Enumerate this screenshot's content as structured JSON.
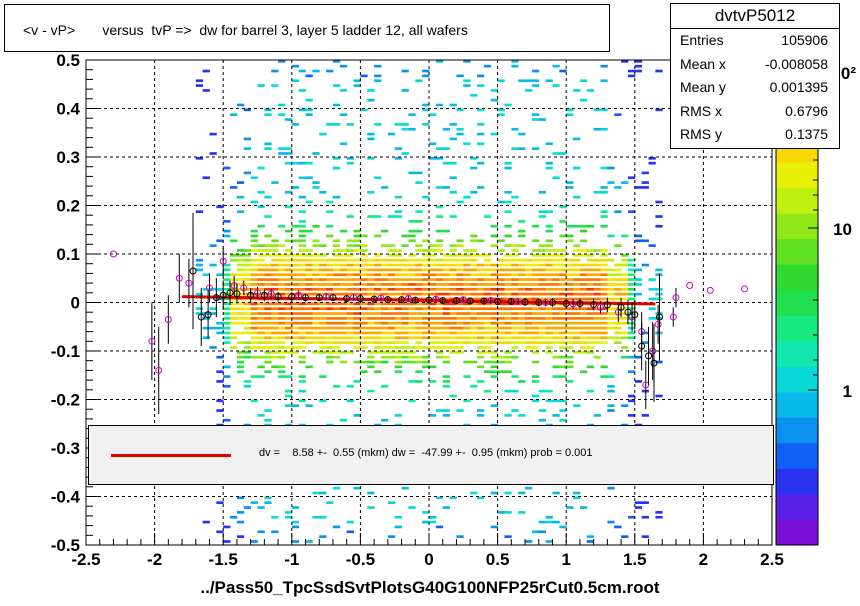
{
  "title": "<v - vP>       versus  tvP =>  dw for barrel 3, layer 5 ladder 12, all wafers",
  "stats": {
    "name": "dvtvP5012",
    "rows": [
      {
        "key": "Entries",
        "value": "105906"
      },
      {
        "key": "Mean x",
        "value": "-0.008058"
      },
      {
        "key": "Mean y",
        "value": "0.001395"
      },
      {
        "key": "RMS x",
        "value": "0.6796"
      },
      {
        "key": "RMS y",
        "value": "0.1375"
      }
    ]
  },
  "legend": {
    "text": "dv =    8.58 +-  0.55 (mkm) dw =  -47.99 +-  0.95 (mkm) prob = 0.001",
    "line_color": "#e00000"
  },
  "xaxis_title": "../Pass50_TpcSsdSvtPlotsG40G100NFP25rCut0.5cm.root",
  "chart_data": {
    "type": "heatmap",
    "title": "<v - vP>       versus  tvP =>  dw for barrel 3, layer 5 ladder 12, all wafers",
    "xlabel": "../Pass50_TpcSsdSvtPlotsG40G100NFP25rCut0.5cm.root",
    "ylabel": "",
    "xlim": [
      -2.5,
      2.5
    ],
    "ylim": [
      -0.5,
      0.5
    ],
    "x_ticks": [
      "-2.5",
      "-2",
      "-1.5",
      "-1",
      "-0.5",
      "0",
      "0.5",
      "1",
      "1.5",
      "2",
      "2.5"
    ],
    "y_ticks": [
      "0.5",
      "0.4",
      "0.3",
      "0.2",
      "0.1",
      "0",
      "-0.1",
      "-0.2",
      "-0.3",
      "-0.4",
      "-0.5"
    ],
    "grid": true,
    "z_scale": "log",
    "z_ticks": [
      "1",
      "10"
    ],
    "z_exponent_fragment": "0²",
    "palette": [
      "#7a10d8",
      "#5a20e8",
      "#2a32f0",
      "#1060f5",
      "#0a90f0",
      "#08b8e8",
      "#08d8d8",
      "#10e8b0",
      "#18e880",
      "#20e050",
      "#30d830",
      "#60e020",
      "#90e818",
      "#c0f010",
      "#e8f008",
      "#f8d800",
      "#f8a800",
      "#f87800",
      "#f04000"
    ],
    "fit_line": {
      "x": [
        -1.8,
        1.65
      ],
      "y": [
        0.012,
        -0.003
      ],
      "color": "#e00000"
    },
    "profile_black": [
      {
        "x": -1.72,
        "y": 0.065,
        "err": 0.12
      },
      {
        "x": -1.66,
        "y": -0.03,
        "err": 0.06
      },
      {
        "x": -1.61,
        "y": -0.025,
        "err": 0.05
      },
      {
        "x": -1.55,
        "y": 0.01,
        "err": 0.04
      },
      {
        "x": -1.5,
        "y": 0.015,
        "err": 0.03
      },
      {
        "x": -1.45,
        "y": 0.02,
        "err": 0.025
      },
      {
        "x": -1.4,
        "y": 0.018,
        "err": 0.02
      },
      {
        "x": -1.3,
        "y": 0.015,
        "err": 0.015
      },
      {
        "x": -1.2,
        "y": 0.015,
        "err": 0.012
      },
      {
        "x": -1.1,
        "y": 0.012,
        "err": 0.01
      },
      {
        "x": -1.0,
        "y": 0.012,
        "err": 0.01
      },
      {
        "x": -0.9,
        "y": 0.01,
        "err": 0.008
      },
      {
        "x": -0.8,
        "y": 0.01,
        "err": 0.008
      },
      {
        "x": -0.7,
        "y": 0.01,
        "err": 0.007
      },
      {
        "x": -0.6,
        "y": 0.008,
        "err": 0.007
      },
      {
        "x": -0.5,
        "y": 0.008,
        "err": 0.006
      },
      {
        "x": -0.4,
        "y": 0.007,
        "err": 0.006
      },
      {
        "x": -0.3,
        "y": 0.006,
        "err": 0.006
      },
      {
        "x": -0.2,
        "y": 0.006,
        "err": 0.006
      },
      {
        "x": -0.1,
        "y": 0.005,
        "err": 0.006
      },
      {
        "x": 0.0,
        "y": 0.005,
        "err": 0.006
      },
      {
        "x": 0.1,
        "y": 0.004,
        "err": 0.006
      },
      {
        "x": 0.2,
        "y": 0.004,
        "err": 0.006
      },
      {
        "x": 0.3,
        "y": 0.003,
        "err": 0.006
      },
      {
        "x": 0.4,
        "y": 0.003,
        "err": 0.006
      },
      {
        "x": 0.5,
        "y": 0.002,
        "err": 0.007
      },
      {
        "x": 0.6,
        "y": 0.002,
        "err": 0.007
      },
      {
        "x": 0.7,
        "y": 0.001,
        "err": 0.008
      },
      {
        "x": 0.8,
        "y": 0.0,
        "err": 0.008
      },
      {
        "x": 0.9,
        "y": 0.0,
        "err": 0.009
      },
      {
        "x": 1.0,
        "y": -0.002,
        "err": 0.01
      },
      {
        "x": 1.1,
        "y": -0.002,
        "err": 0.01
      },
      {
        "x": 1.2,
        "y": -0.004,
        "err": 0.012
      },
      {
        "x": 1.3,
        "y": -0.005,
        "err": 0.015
      },
      {
        "x": 1.4,
        "y": -0.01,
        "err": 0.02
      },
      {
        "x": 1.45,
        "y": -0.02,
        "err": 0.025
      },
      {
        "x": 1.5,
        "y": -0.025,
        "err": 0.03
      },
      {
        "x": 1.55,
        "y": -0.09,
        "err": 0.05
      },
      {
        "x": 1.6,
        "y": -0.11,
        "err": 0.06
      },
      {
        "x": 1.64,
        "y": -0.125,
        "err": 0.08
      },
      {
        "x": 1.68,
        "y": -0.03,
        "err": 0.09
      }
    ],
    "profile_magenta": [
      {
        "x": -2.3,
        "y": 0.1,
        "err": 0.0
      },
      {
        "x": -2.02,
        "y": -0.08,
        "err": 0.08
      },
      {
        "x": -1.97,
        "y": -0.14,
        "err": 0.09
      },
      {
        "x": -1.9,
        "y": -0.035,
        "err": 0.05
      },
      {
        "x": -1.82,
        "y": 0.05,
        "err": 0.05
      },
      {
        "x": -1.75,
        "y": 0.04,
        "err": 0.05
      },
      {
        "x": -1.6,
        "y": 0.03,
        "err": 0.03
      },
      {
        "x": -1.5,
        "y": 0.085,
        "err": 0.03
      },
      {
        "x": -1.42,
        "y": 0.035,
        "err": 0.02
      },
      {
        "x": -1.35,
        "y": 0.03,
        "err": 0.015
      },
      {
        "x": -1.25,
        "y": 0.02,
        "err": 0.012
      },
      {
        "x": -1.15,
        "y": 0.018,
        "err": 0.01
      },
      {
        "x": -0.95,
        "y": 0.015,
        "err": 0.01
      },
      {
        "x": -0.75,
        "y": 0.012,
        "err": 0.008
      },
      {
        "x": -0.55,
        "y": 0.01,
        "err": 0.007
      },
      {
        "x": -0.35,
        "y": 0.009,
        "err": 0.006
      },
      {
        "x": -0.15,
        "y": 0.008,
        "err": 0.006
      },
      {
        "x": 0.05,
        "y": 0.007,
        "err": 0.006
      },
      {
        "x": 0.25,
        "y": 0.006,
        "err": 0.006
      },
      {
        "x": 0.45,
        "y": 0.004,
        "err": 0.007
      },
      {
        "x": 0.65,
        "y": 0.002,
        "err": 0.007
      },
      {
        "x": 0.85,
        "y": 0.0,
        "err": 0.008
      },
      {
        "x": 1.05,
        "y": -0.003,
        "err": 0.01
      },
      {
        "x": 1.25,
        "y": -0.01,
        "err": 0.013
      },
      {
        "x": 1.38,
        "y": -0.02,
        "err": 0.02
      },
      {
        "x": 1.48,
        "y": -0.03,
        "err": 0.03
      },
      {
        "x": 1.55,
        "y": -0.06,
        "err": 0.04
      },
      {
        "x": 1.58,
        "y": -0.17,
        "err": 0.05
      },
      {
        "x": 1.63,
        "y": -0.1,
        "err": 0.06
      },
      {
        "x": 1.67,
        "y": -0.045,
        "err": 0.04
      },
      {
        "x": 1.78,
        "y": -0.03,
        "err": 0.02
      },
      {
        "x": 1.8,
        "y": 0.01,
        "err": 0.02
      },
      {
        "x": 1.9,
        "y": 0.035,
        "err": 0.0
      },
      {
        "x": 2.05,
        "y": 0.025,
        "err": 0.0
      },
      {
        "x": 2.3,
        "y": 0.028,
        "err": 0.0
      }
    ]
  }
}
